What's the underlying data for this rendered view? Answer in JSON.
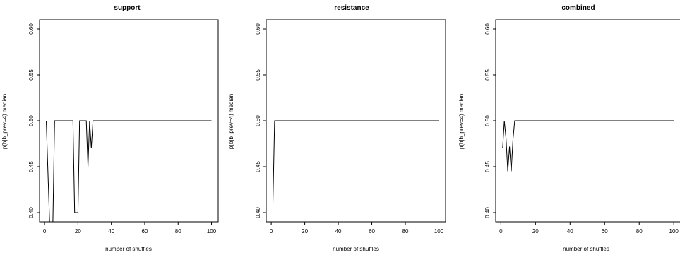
{
  "chart_data": [
    {
      "type": "line",
      "title": "support",
      "xlabel": "number of shuffles",
      "ylabel": "p(b|b_prev=4) median",
      "xlim": [
        -3,
        104
      ],
      "ylim": [
        0.39,
        0.61
      ],
      "xticks": [
        0,
        20,
        40,
        60,
        80,
        100
      ],
      "yticks": [
        0.4,
        0.45,
        0.5,
        0.55,
        0.6
      ],
      "grid": false,
      "series": [
        {
          "x": [
            1,
            3,
            4,
            5,
            6,
            7,
            8,
            9,
            10,
            11,
            12,
            13,
            14,
            15,
            16,
            17,
            18,
            19,
            20,
            21,
            22,
            23,
            24,
            25,
            26,
            27,
            28,
            29,
            30,
            31,
            32,
            33,
            34,
            35,
            36,
            37,
            38,
            39,
            40,
            41,
            42,
            43,
            44,
            45,
            46,
            47,
            48,
            49,
            50,
            51,
            52,
            53,
            54,
            55,
            56,
            57,
            58,
            59,
            60,
            61,
            62,
            63,
            64,
            65,
            66,
            67,
            68,
            69,
            70,
            71,
            72,
            73,
            74,
            75,
            76,
            77,
            78,
            79,
            80,
            81,
            82,
            83,
            84,
            85,
            86,
            87,
            88,
            89,
            90,
            91,
            92,
            93,
            94,
            95,
            96,
            97,
            98,
            99,
            100
          ],
          "values": [
            0.5,
            0.38,
            0.38,
            0.38,
            0.5,
            0.5,
            0.5,
            0.5,
            0.5,
            0.5,
            0.5,
            0.5,
            0.5,
            0.5,
            0.5,
            0.5,
            0.4,
            0.4,
            0.4,
            0.5,
            0.5,
            0.5,
            0.5,
            0.5,
            0.45,
            0.5,
            0.47,
            0.5,
            0.5,
            0.5,
            0.5,
            0.5,
            0.5,
            0.5,
            0.5,
            0.5,
            0.5,
            0.5,
            0.5,
            0.5,
            0.5,
            0.5,
            0.5,
            0.5,
            0.5,
            0.5,
            0.5,
            0.5,
            0.5,
            0.5,
            0.5,
            0.5,
            0.5,
            0.5,
            0.5,
            0.5,
            0.5,
            0.5,
            0.5,
            0.5,
            0.5,
            0.5,
            0.5,
            0.5,
            0.5,
            0.5,
            0.5,
            0.5,
            0.5,
            0.5,
            0.5,
            0.5,
            0.5,
            0.5,
            0.5,
            0.5,
            0.5,
            0.5,
            0.5,
            0.5,
            0.5,
            0.5,
            0.5,
            0.5,
            0.5,
            0.5,
            0.5,
            0.5,
            0.5,
            0.5,
            0.5,
            0.5,
            0.5,
            0.5,
            0.5,
            0.5,
            0.5,
            0.5,
            0.5
          ]
        }
      ]
    },
    {
      "type": "line",
      "title": "resistance",
      "xlabel": "number of shuffles",
      "ylabel": "p(b|b_prev=4) median",
      "xlim": [
        -3,
        104
      ],
      "ylim": [
        0.39,
        0.61
      ],
      "xticks": [
        0,
        20,
        40,
        60,
        80,
        100
      ],
      "yticks": [
        0.4,
        0.45,
        0.5,
        0.55,
        0.6
      ],
      "grid": false,
      "series": [
        {
          "x": [
            1,
            2,
            3,
            10,
            20,
            30,
            40,
            50,
            60,
            70,
            80,
            90,
            100
          ],
          "values": [
            0.41,
            0.5,
            0.5,
            0.5,
            0.5,
            0.5,
            0.5,
            0.5,
            0.5,
            0.5,
            0.5,
            0.5,
            0.5
          ]
        }
      ]
    },
    {
      "type": "line",
      "title": "combined",
      "xlabel": "number of shuffles",
      "ylabel": "p(b|b_prev=4) median",
      "xlim": [
        -3,
        104
      ],
      "ylim": [
        0.39,
        0.61
      ],
      "xticks": [
        0,
        20,
        40,
        60,
        80,
        100
      ],
      "yticks": [
        0.4,
        0.45,
        0.5,
        0.55,
        0.6
      ],
      "grid": false,
      "series": [
        {
          "x": [
            1,
            2,
            3,
            4,
            5,
            6,
            7,
            8,
            9,
            10,
            20,
            30,
            40,
            50,
            60,
            70,
            80,
            90,
            100
          ],
          "values": [
            0.47,
            0.5,
            0.48,
            0.445,
            0.472,
            0.445,
            0.48,
            0.5,
            0.5,
            0.5,
            0.5,
            0.5,
            0.5,
            0.5,
            0.5,
            0.5,
            0.5,
            0.5,
            0.5
          ]
        }
      ]
    }
  ]
}
